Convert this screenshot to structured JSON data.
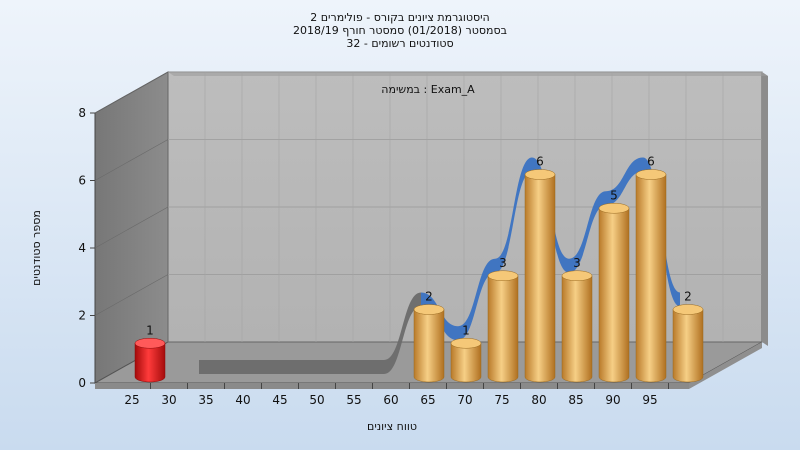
{
  "chart_data": {
    "type": "bar",
    "title_lines": [
      "היסטוגרמת ציונים בקורס - פולימרים 2",
      "בסמסטר  (01/2018)  סמסטר חורף  2018/19",
      "סטודנטים רשומים - 32"
    ],
    "subtitle": "במשימה : Exam_A",
    "xlabel": "טווח ציונים",
    "ylabel": "מספר סטודנטים",
    "x_ticks": [
      "25",
      "30",
      "35",
      "40",
      "45",
      "50",
      "55",
      "60",
      "65",
      "70",
      "75",
      "80",
      "85",
      "90",
      "95"
    ],
    "y_ticks": [
      "0",
      "2",
      "4",
      "6",
      "8"
    ],
    "ylim": [
      0,
      8
    ],
    "categories": [
      "25",
      "30",
      "35",
      "40",
      "45",
      "50",
      "55",
      "60",
      "65",
      "70",
      "75",
      "80",
      "85",
      "90",
      "95"
    ],
    "values": [
      1,
      0,
      0,
      0,
      0,
      0,
      0,
      2,
      1,
      3,
      6,
      3,
      5,
      6,
      2
    ],
    "data_labels": [
      "1",
      "",
      "",
      "",
      "",
      "",
      "",
      "2",
      "1",
      "3",
      "6",
      "3",
      "5",
      "6",
      "2"
    ],
    "bar_colors": {
      "fail": "#dd1a1a",
      "pass": "#e3a54a"
    },
    "trend_colors": {
      "low": "#6b6b6b",
      "high": "#3a72c2"
    },
    "grid": true
  }
}
